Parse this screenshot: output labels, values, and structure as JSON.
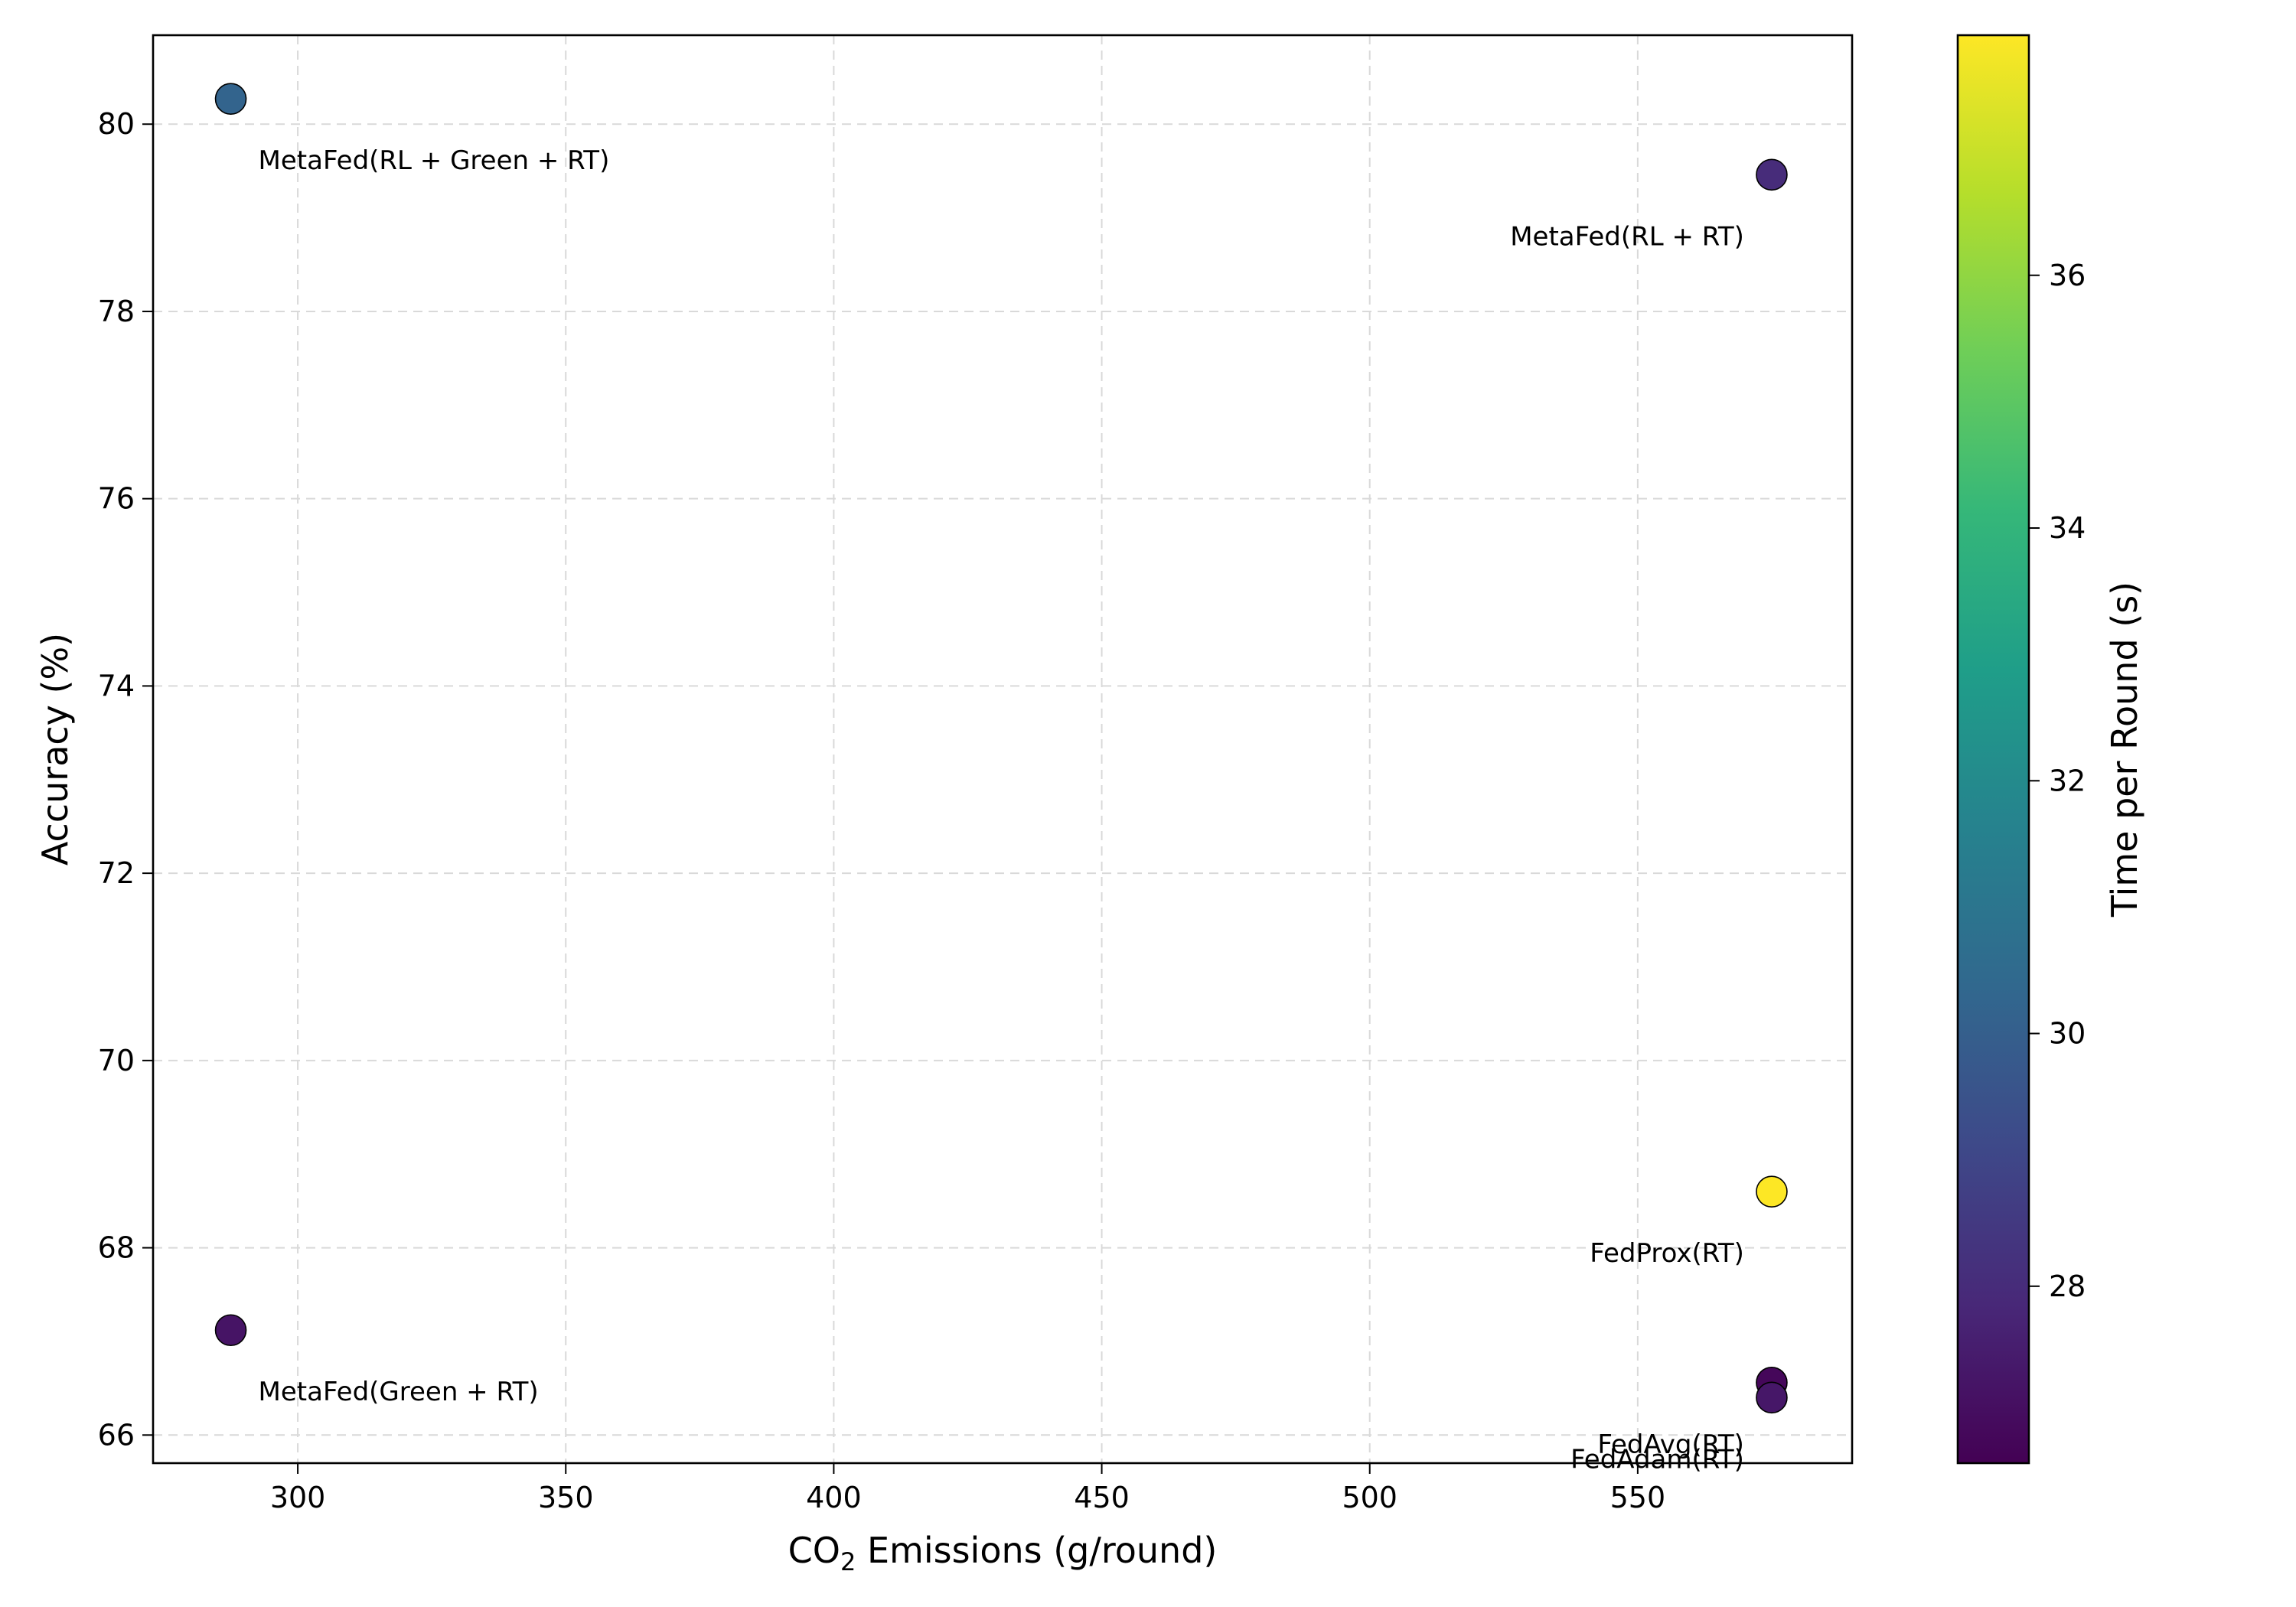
{
  "chart_data": {
    "type": "scatter",
    "title": "",
    "xlabel": "CO",
    "xlabel_sub": "2",
    "xlabel_rest": " Emissions (g/round)",
    "ylabel": "Accuracy (%)",
    "colorbar_label": "Time per Round (s)",
    "colormap": "viridis",
    "colormap_stops": [
      "#440154",
      "#482878",
      "#3e4989",
      "#31688e",
      "#26828e",
      "#1f9e89",
      "#35b779",
      "#6ece58",
      "#b5de2b",
      "#fde725"
    ],
    "xlim": [
      273,
      590
    ],
    "ylim": [
      65.7,
      80.95
    ],
    "clim": [
      26.6,
      37.9
    ],
    "grid": true,
    "xticks": [
      300,
      350,
      400,
      450,
      500,
      550
    ],
    "yticks": [
      66,
      68,
      70,
      72,
      74,
      76,
      78,
      80
    ],
    "cticks": [
      28,
      30,
      32,
      34,
      36
    ],
    "points": [
      {
        "label": "MetaFed(RL + Green + RT)",
        "x": 287.5,
        "y": 80.27,
        "time": 30.2,
        "label_align": "right-below"
      },
      {
        "label": "MetaFed(RL + RT)",
        "x": 575,
        "y": 79.46,
        "time": 28.0,
        "label_align": "left-below"
      },
      {
        "label": "FedProx(RT)",
        "x": 575,
        "y": 68.6,
        "time": 37.9,
        "label_align": "left-below"
      },
      {
        "label": "MetaFed(Green + RT)",
        "x": 287.5,
        "y": 67.12,
        "time": 27.2,
        "label_align": "right-below"
      },
      {
        "label": "FedAvg(RT)",
        "x": 575,
        "y": 66.56,
        "time": 26.8,
        "label_align": "left-below"
      },
      {
        "label": "FedAdam(RT)",
        "x": 575,
        "y": 66.4,
        "time": 27.3,
        "label_align": "left-below"
      }
    ]
  }
}
